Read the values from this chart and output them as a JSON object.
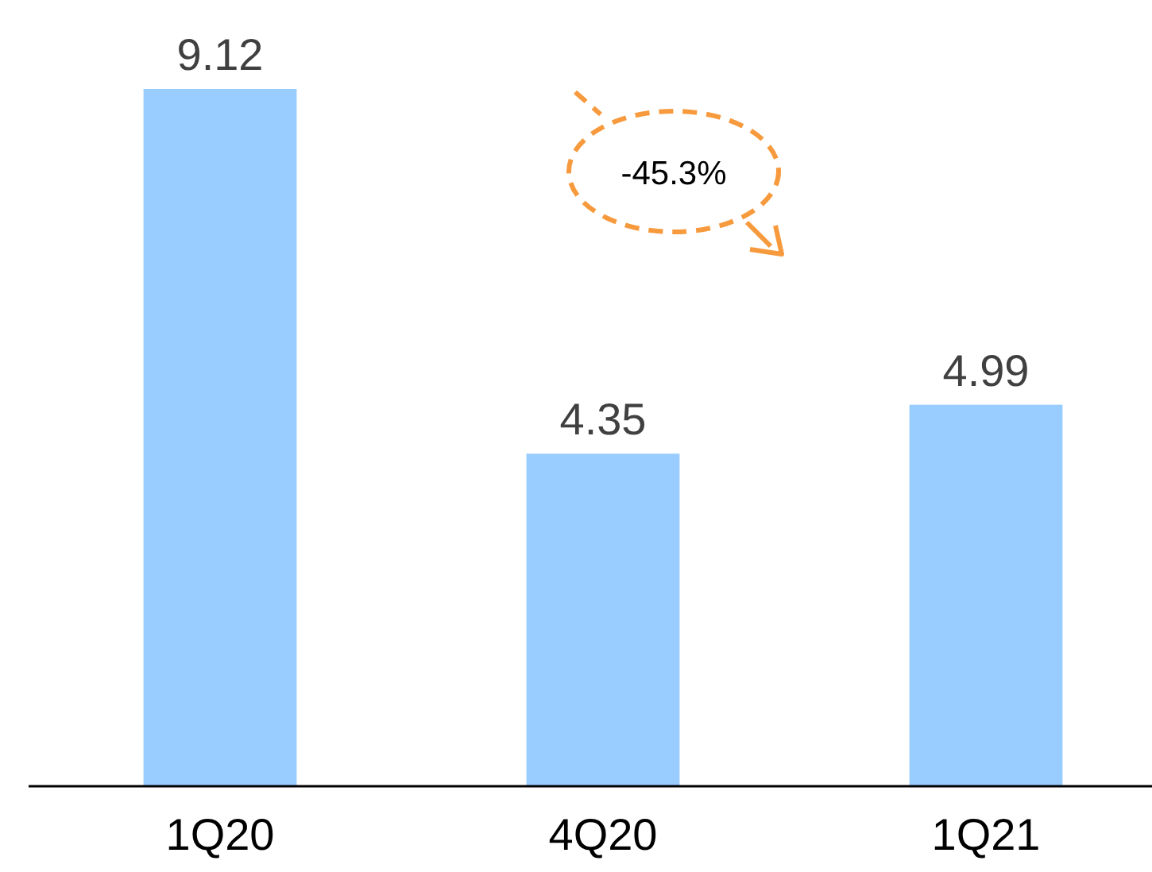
{
  "chart_data": {
    "type": "bar",
    "categories": [
      "1Q20",
      "4Q20",
      "1Q21"
    ],
    "values": [
      9.12,
      4.35,
      4.99
    ],
    "color": "#99ccff",
    "data_labels": true,
    "annotations": [
      "-45.3%"
    ]
  }
}
